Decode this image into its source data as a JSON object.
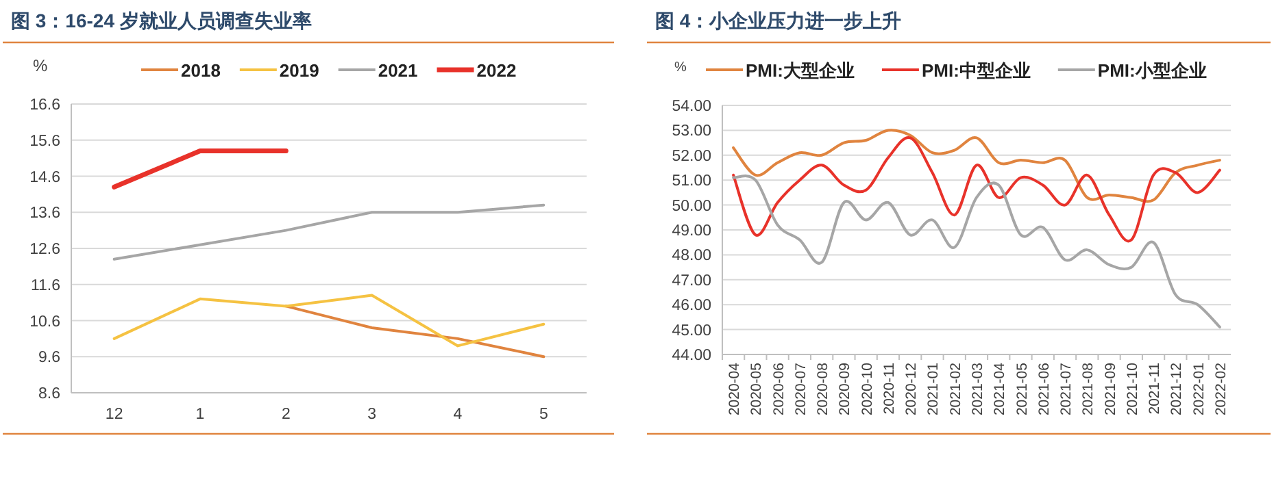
{
  "chart_data": [
    {
      "type": "line",
      "title": "图 3：16-24 岁就业人员调查失业率",
      "ylabel": "%",
      "categories": [
        "12",
        "1",
        "2",
        "3",
        "4",
        "5"
      ],
      "series": [
        {
          "name": "2018",
          "color": "#e0843f",
          "values": [
            null,
            null,
            11.0,
            10.4,
            10.1,
            9.6
          ]
        },
        {
          "name": "2019",
          "color": "#f5c242",
          "values": [
            10.1,
            11.2,
            11.0,
            11.3,
            9.9,
            10.5
          ]
        },
        {
          "name": "2021",
          "color": "#a6a6a6",
          "values": [
            12.3,
            12.7,
            13.1,
            13.6,
            13.6,
            13.8
          ]
        },
        {
          "name": "2022",
          "color": "#e8322a",
          "values": [
            14.3,
            15.3,
            15.3,
            null,
            null,
            null
          ]
        }
      ],
      "ylim": [
        8.6,
        16.6
      ],
      "yticks": [
        8.6,
        9.6,
        10.6,
        11.6,
        12.6,
        13.6,
        14.6,
        15.6,
        16.6
      ],
      "grid": "y",
      "legend": "top"
    },
    {
      "type": "line",
      "title": "图 4：小企业压力进一步上升",
      "ylabel": "%",
      "categories": [
        "2020-04",
        "2020-05",
        "2020-06",
        "2020-07",
        "2020-08",
        "2020-09",
        "2020-10",
        "2020-11",
        "2020-12",
        "2021-01",
        "2021-02",
        "2021-03",
        "2021-04",
        "2021-05",
        "2021-06",
        "2021-07",
        "2021-08",
        "2021-09",
        "2021-10",
        "2021-11",
        "2021-12",
        "2022-01",
        "2022-02"
      ],
      "series": [
        {
          "name": "PMI:大型企业",
          "color": "#e0843f",
          "values": [
            52.3,
            51.2,
            51.7,
            52.1,
            52.0,
            52.5,
            52.6,
            53.0,
            52.8,
            52.1,
            52.2,
            52.7,
            51.7,
            51.8,
            51.7,
            51.8,
            50.3,
            50.4,
            50.3,
            50.2,
            51.3,
            51.6,
            51.8
          ]
        },
        {
          "name": "PMI:中型企业",
          "color": "#e8322a",
          "values": [
            51.2,
            48.8,
            50.1,
            51.0,
            51.6,
            50.8,
            50.6,
            51.9,
            52.7,
            51.3,
            49.6,
            51.6,
            50.3,
            51.1,
            50.8,
            50.0,
            51.2,
            49.6,
            48.6,
            51.2,
            51.3,
            50.5,
            51.4
          ]
        },
        {
          "name": "PMI:小型企业",
          "color": "#a6a6a6",
          "values": [
            51.1,
            51.0,
            49.2,
            48.6,
            47.7,
            50.1,
            49.4,
            50.1,
            48.8,
            49.4,
            48.3,
            50.3,
            50.8,
            48.8,
            49.1,
            47.8,
            48.2,
            47.6,
            47.5,
            48.5,
            46.4,
            46.0,
            45.1
          ]
        }
      ],
      "ylim": [
        44,
        54
      ],
      "yticks": [
        {
          "value": 44,
          "label": "44.00"
        },
        {
          "value": 45,
          "label": "45.00"
        },
        {
          "value": 46,
          "label": "46.00"
        },
        {
          "value": 47,
          "label": "47.00"
        },
        {
          "value": 48,
          "label": "48.00"
        },
        {
          "value": 49,
          "label": "49.00"
        },
        {
          "value": 50,
          "label": "50.00"
        },
        {
          "value": 51,
          "label": "51.00"
        },
        {
          "value": 52,
          "label": "52.00"
        },
        {
          "value": 53,
          "label": "53.00"
        },
        {
          "value": 54,
          "label": "54.00"
        }
      ],
      "grid": "y",
      "legend": "top"
    }
  ]
}
